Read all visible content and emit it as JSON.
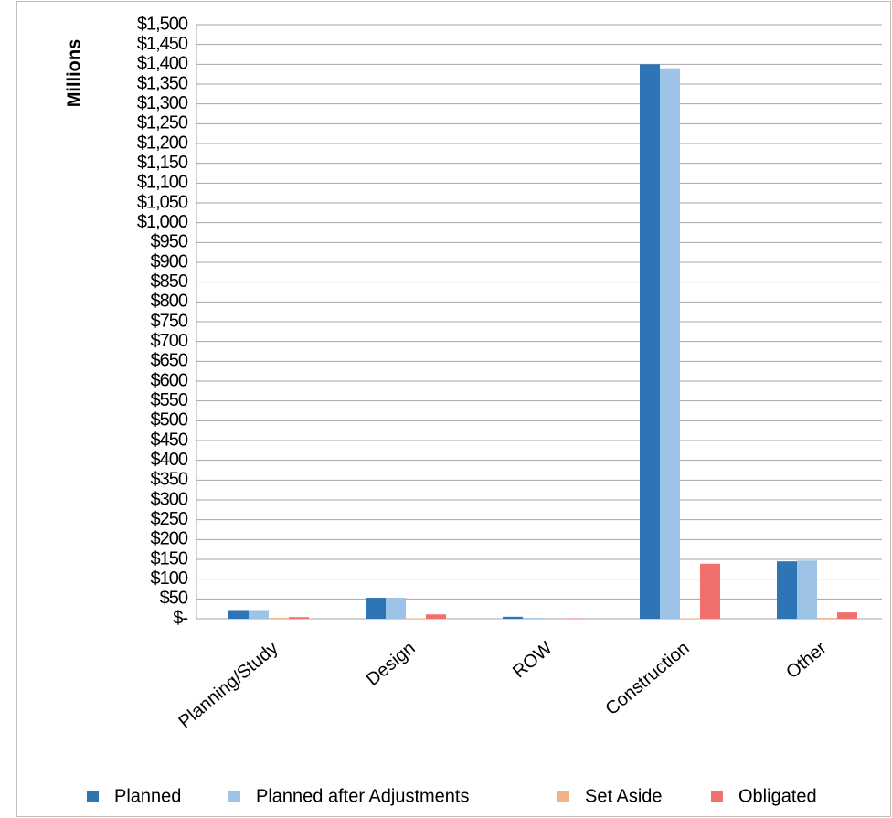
{
  "chart_data": {
    "type": "bar",
    "y_label": "Millions",
    "categories": [
      "Planning/Study",
      "Design",
      "ROW",
      "Construction",
      "Other"
    ],
    "series": [
      {
        "name": "Planned",
        "color": "#2e75b6",
        "values": [
          22,
          53,
          5,
          1400,
          145
        ]
      },
      {
        "name": "Planned after Adjustments",
        "color": "#9dc3e6",
        "values": [
          22,
          53,
          2,
          1390,
          147
        ]
      },
      {
        "name": "Set Aside",
        "color": "#f4b183",
        "values": [
          2,
          1,
          0,
          1,
          2
        ]
      },
      {
        "name": "Obligated",
        "color": "#f0716b",
        "values": [
          4,
          11,
          1,
          139,
          16
        ]
      }
    ],
    "ylim": [
      0,
      1500
    ],
    "yticks": [
      {
        "value": 0,
        "label": "$-"
      },
      {
        "value": 50,
        "label": "$50"
      },
      {
        "value": 100,
        "label": "$100"
      },
      {
        "value": 150,
        "label": "$150"
      },
      {
        "value": 200,
        "label": "$200"
      },
      {
        "value": 250,
        "label": "$250"
      },
      {
        "value": 300,
        "label": "$300"
      },
      {
        "value": 350,
        "label": "$350"
      },
      {
        "value": 400,
        "label": "$400"
      },
      {
        "value": 450,
        "label": "$450"
      },
      {
        "value": 500,
        "label": "$500"
      },
      {
        "value": 550,
        "label": "$550"
      },
      {
        "value": 600,
        "label": "$600"
      },
      {
        "value": 650,
        "label": "$650"
      },
      {
        "value": 700,
        "label": "$700"
      },
      {
        "value": 750,
        "label": "$750"
      },
      {
        "value": 800,
        "label": "$800"
      },
      {
        "value": 850,
        "label": "$850"
      },
      {
        "value": 900,
        "label": "$900"
      },
      {
        "value": 950,
        "label": "$950"
      },
      {
        "value": 1000,
        "label": "$1,000"
      },
      {
        "value": 1050,
        "label": "$1,050"
      },
      {
        "value": 1100,
        "label": "$1,100"
      },
      {
        "value": 1150,
        "label": "$1,150"
      },
      {
        "value": 1200,
        "label": "$1,200"
      },
      {
        "value": 1250,
        "label": "$1,250"
      },
      {
        "value": 1300,
        "label": "$1,300"
      },
      {
        "value": 1350,
        "label": "$1,350"
      },
      {
        "value": 1400,
        "label": "$1,400"
      },
      {
        "value": 1450,
        "label": "$1,450"
      },
      {
        "value": 1500,
        "label": "$1,500"
      }
    ],
    "grid": true,
    "legend": "bottom"
  }
}
